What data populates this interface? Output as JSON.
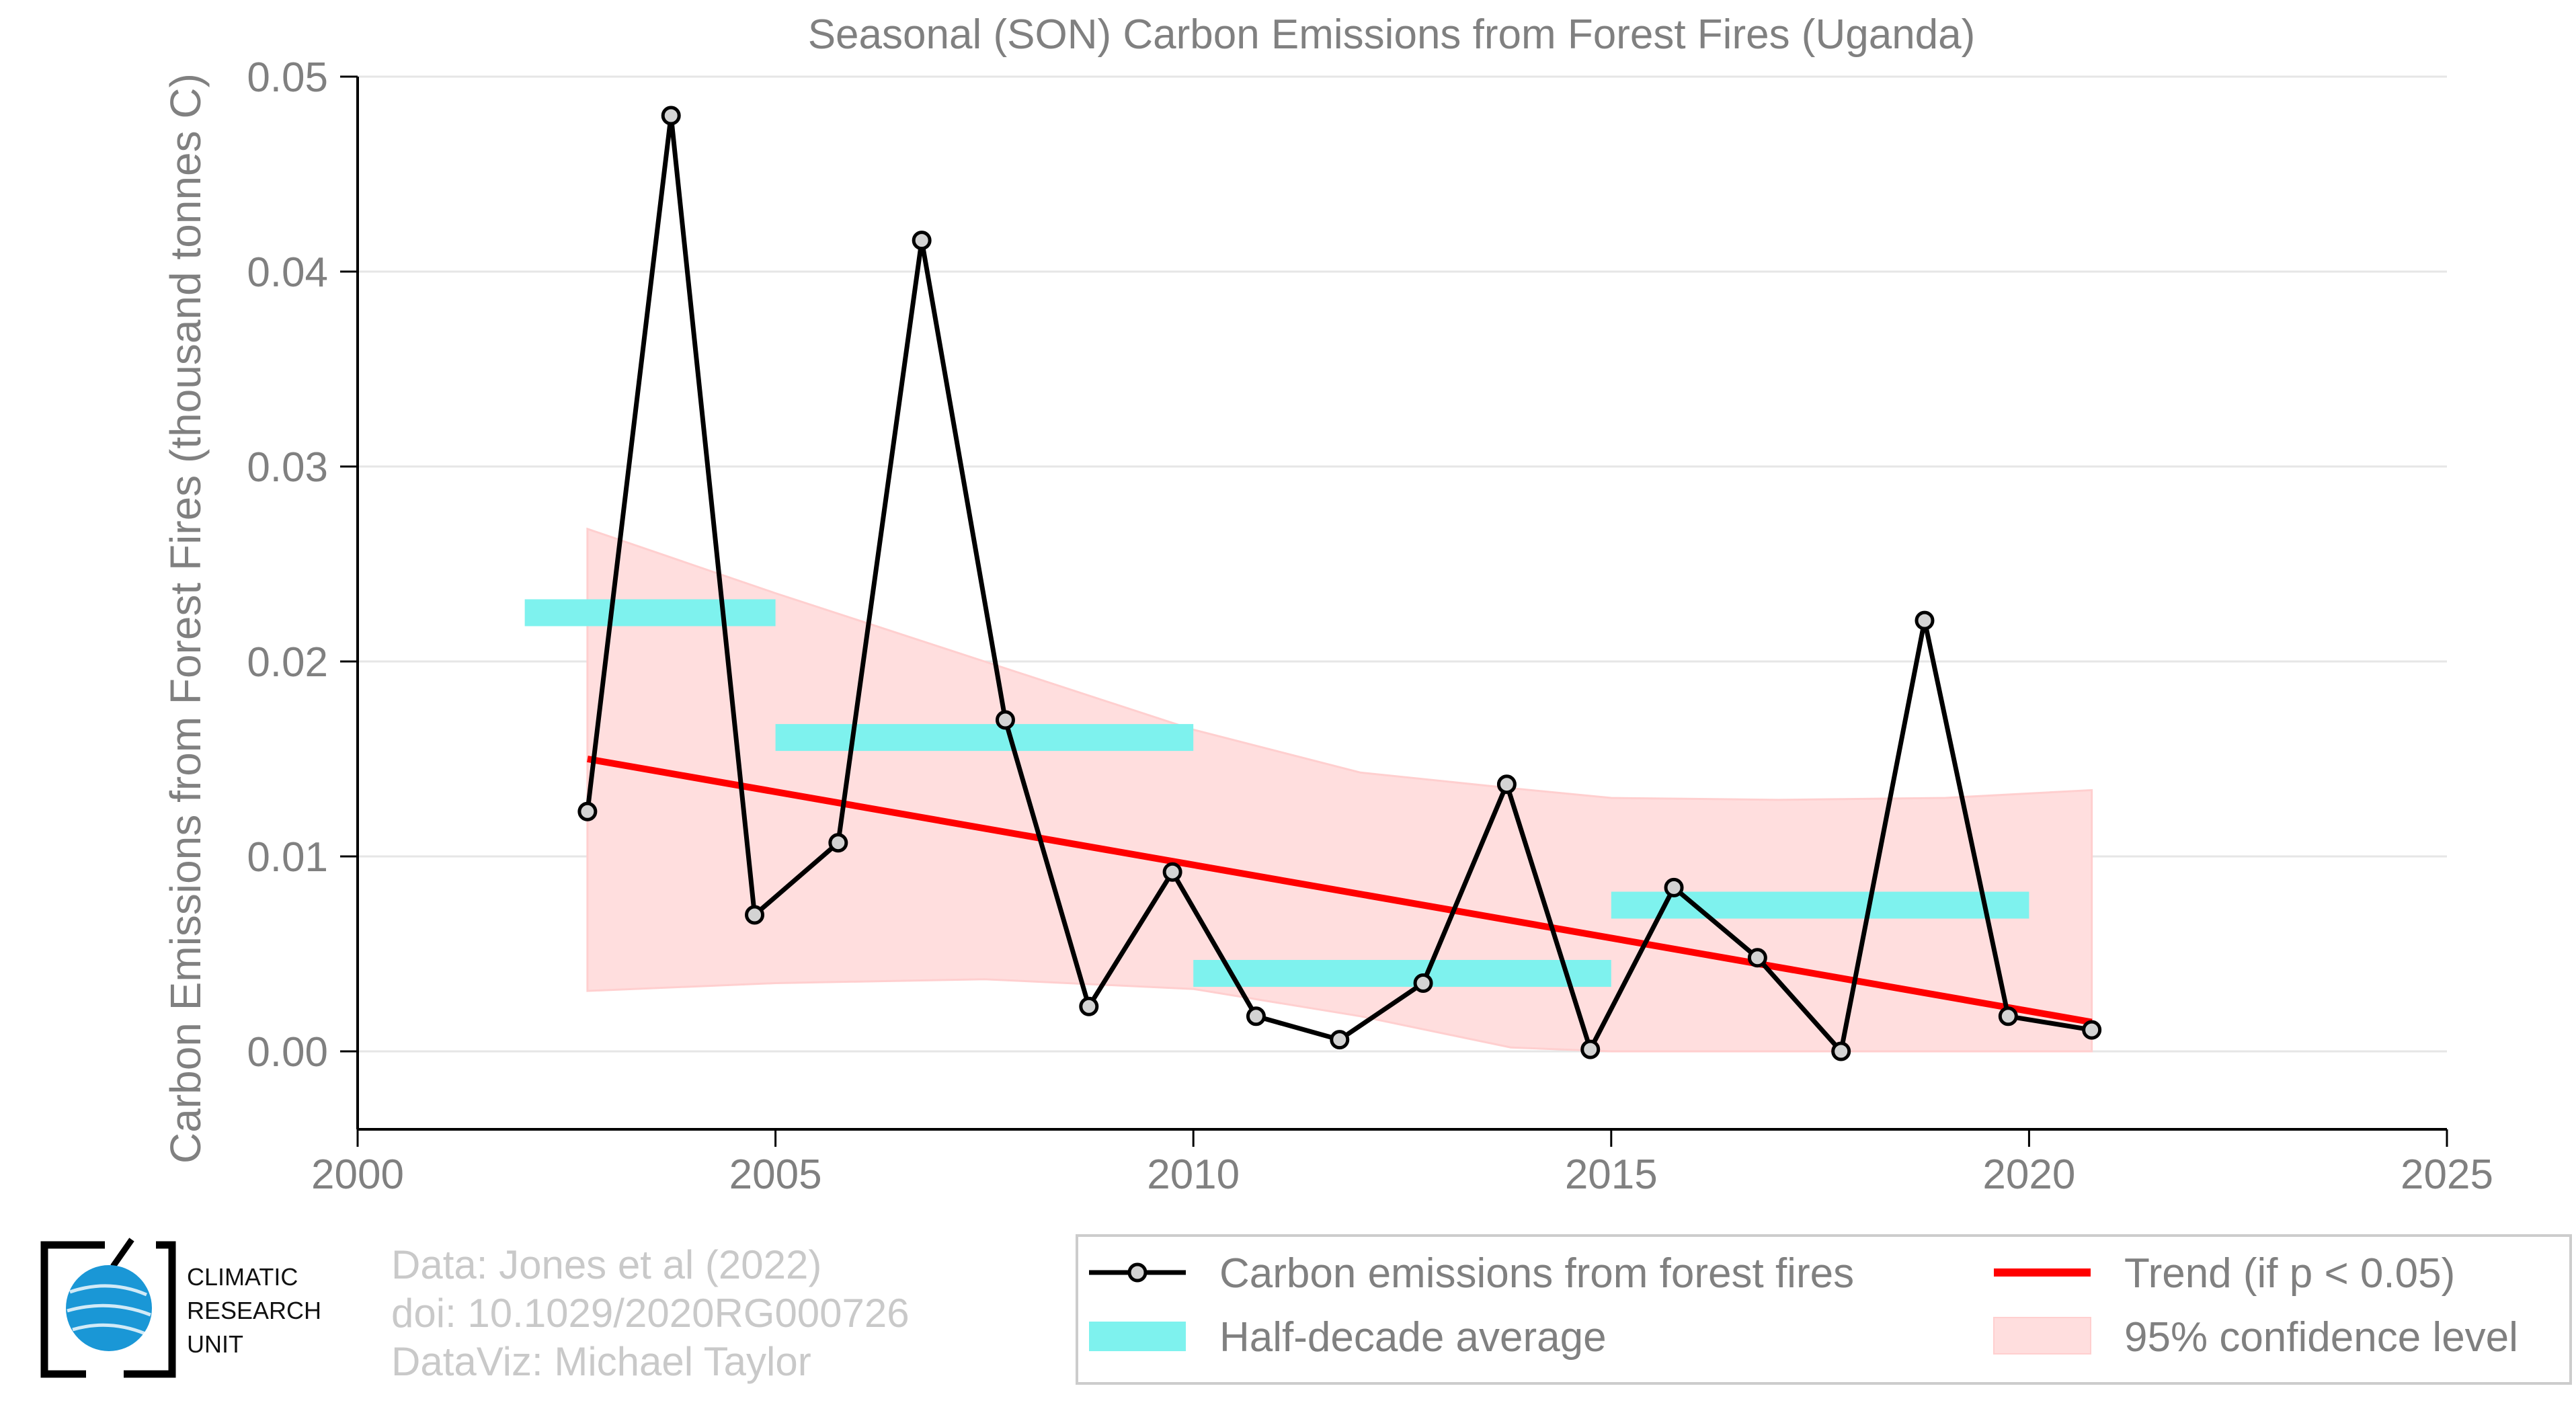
{
  "chart_data": {
    "type": "line",
    "title": "Seasonal (SON) Carbon Emissions from Forest Fires (Uganda)",
    "xlabel": "",
    "ylabel": "Carbon Emissions from Forest Fires (thousand tonnes C)",
    "xlim": [
      2000,
      2025
    ],
    "ylim": [
      -0.004,
      0.05
    ],
    "x_ticks": [
      2000,
      2005,
      2010,
      2015,
      2020,
      2025
    ],
    "y_ticks": [
      0.0,
      0.01,
      0.02,
      0.03,
      0.04,
      0.05
    ],
    "y_tick_labels": [
      "0.00",
      "0.01",
      "0.02",
      "0.03",
      "0.04",
      "0.05"
    ],
    "grid": true,
    "legend_position": "bottom-right",
    "series": [
      {
        "name": "Carbon emissions from forest fires",
        "color": "#000000",
        "x": [
          2002.75,
          2003.75,
          2004.75,
          2005.75,
          2006.75,
          2007.75,
          2008.75,
          2009.75,
          2010.75,
          2011.75,
          2012.75,
          2013.75,
          2014.75,
          2015.75,
          2016.75,
          2017.75,
          2018.75,
          2019.75,
          2020.75
        ],
        "values": [
          0.0123,
          0.048,
          0.007,
          0.0107,
          0.0416,
          0.017,
          0.0023,
          0.0092,
          0.0018,
          0.0006,
          0.0035,
          0.0137,
          0.0001,
          0.0084,
          0.0048,
          0.0,
          0.0221,
          0.0018,
          0.0011
        ]
      },
      {
        "name": "Half-decade average",
        "color": "#7ef2ee",
        "segments": [
          {
            "x_start": 2002.0,
            "x_end": 2005.0,
            "value": 0.0225
          },
          {
            "x_start": 2005.0,
            "x_end": 2010.0,
            "value": 0.0161
          },
          {
            "x_start": 2010.0,
            "x_end": 2015.0,
            "value": 0.004
          },
          {
            "x_start": 2015.0,
            "x_end": 2020.0,
            "value": 0.0075
          }
        ]
      },
      {
        "name": "Trend (if p < 0.05)",
        "color": "#ff0000",
        "x": [
          2002.75,
          2020.75
        ],
        "values": [
          0.015,
          0.0015
        ]
      },
      {
        "name": "95% confidence level",
        "color": "#ffdede",
        "x": [
          2002.75,
          2005,
          2007.5,
          2010,
          2012,
          2013.8,
          2015,
          2017,
          2019,
          2020.75
        ],
        "upper": [
          0.0268,
          0.0235,
          0.02,
          0.0165,
          0.0143,
          0.0135,
          0.013,
          0.0129,
          0.013,
          0.0134
        ],
        "lower": [
          0.0031,
          0.0035,
          0.0037,
          0.0032,
          0.0018,
          0.0002,
          0.0,
          0.0,
          0.0,
          0.0
        ]
      }
    ]
  },
  "legend": {
    "items": [
      {
        "label": "Carbon emissions from forest fires"
      },
      {
        "label": "Trend (if p < 0.05)"
      },
      {
        "label": "Half-decade average"
      },
      {
        "label": "95% confidence level"
      }
    ]
  },
  "credits": {
    "line1": "Data: Jones et al (2022)",
    "line2": "doi: 10.1029/2020RG000726",
    "line3": "DataViz: Michael Taylor"
  },
  "logo": {
    "line1": "CLIMATIC",
    "line2": "RESEARCH",
    "line3": "UNIT"
  },
  "colors": {
    "axis_text": "#808080",
    "grid": "#e6e6e6",
    "credits": "#c9c9c9"
  }
}
